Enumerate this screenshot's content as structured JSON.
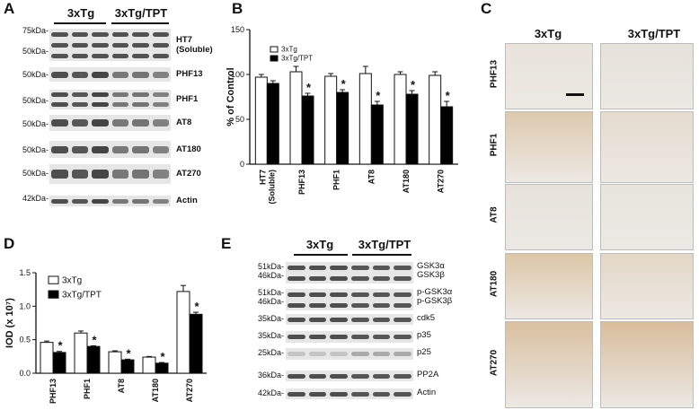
{
  "figure": {
    "panel_labels": {
      "a": "A",
      "b": "B",
      "c": "C",
      "d": "D",
      "e": "E"
    },
    "groups": {
      "control": "3xTg",
      "treated": "3xTg/TPT"
    },
    "panel_a": {
      "blots": [
        {
          "mw": [
            "75kDa-",
            "50kDa-"
          ],
          "label": "HT7\n(Soluble)"
        },
        {
          "mw": [
            "50kDa-"
          ],
          "label": "PHF13"
        },
        {
          "mw": [
            "50kDa-"
          ],
          "label": "PHF1"
        },
        {
          "mw": [
            "50kDa-"
          ],
          "label": "AT8"
        },
        {
          "mw": [
            "50kDa-"
          ],
          "label": "AT180"
        },
        {
          "mw": [
            "50kDa-"
          ],
          "label": "AT270"
        },
        {
          "mw": [
            "42kDa-"
          ],
          "label": "Actin"
        }
      ]
    },
    "panel_c": {
      "rows": [
        "PHF13",
        "PHF1",
        "AT8",
        "AT180",
        "AT270"
      ]
    },
    "panel_e": {
      "blots": [
        {
          "mw": [
            "51kDa-",
            "46kDa-"
          ],
          "labels": [
            "GSK3α",
            "GSK3β"
          ]
        },
        {
          "mw": [
            "51kDa-",
            "46kDa-"
          ],
          "labels": [
            "p-GSK3α",
            "p-GSK3β"
          ]
        },
        {
          "mw": [
            "35kDa-"
          ],
          "labels": [
            "cdk5"
          ]
        },
        {
          "mw": [
            "35kDa-"
          ],
          "labels": [
            "p35"
          ]
        },
        {
          "mw": [
            "25kDa-"
          ],
          "labels": [
            "p25"
          ]
        },
        {
          "mw": [
            "36kDa-"
          ],
          "labels": [
            "PP2A"
          ]
        },
        {
          "mw": [
            "42kDa-"
          ],
          "labels": [
            "Actin"
          ]
        }
      ]
    },
    "colors": {
      "control": "#ffffff",
      "treated": "#000000",
      "outline": "#000000"
    }
  },
  "chart_data": [
    {
      "panel": "B",
      "type": "bar",
      "categories": [
        "HT7 (Soluble)",
        "PHF13",
        "PHF1",
        "AT8",
        "AT180",
        "AT270"
      ],
      "series": [
        {
          "name": "3xTg",
          "values": [
            97,
            103,
            98,
            101,
            100,
            99
          ],
          "errors": [
            3,
            6,
            3,
            8,
            3,
            4
          ]
        },
        {
          "name": "3xTg/TPT",
          "values": [
            90,
            76,
            80,
            66,
            78,
            64
          ],
          "errors": [
            3,
            3,
            3,
            4,
            4,
            6
          ]
        }
      ],
      "significant": [
        "",
        "*",
        "*",
        "*",
        "*",
        "*"
      ],
      "ylabel": "% of Control",
      "yticks": [
        0,
        50,
        100,
        150
      ],
      "ylim": [
        0,
        150
      ],
      "legend_position": "top-left"
    },
    {
      "panel": "D",
      "type": "bar",
      "categories": [
        "PHF13",
        "PHF1",
        "AT8",
        "AT180",
        "AT270"
      ],
      "series": [
        {
          "name": "3xTg",
          "values": [
            0.46,
            0.6,
            0.32,
            0.24,
            1.22
          ],
          "errors": [
            0.02,
            0.03,
            0.015,
            0.01,
            0.09
          ]
        },
        {
          "name": "3xTg/TPT",
          "values": [
            0.31,
            0.4,
            0.2,
            0.15,
            0.88
          ],
          "errors": [
            0.015,
            0.01,
            0.01,
            0.01,
            0.03
          ]
        }
      ],
      "significant": [
        "*",
        "*",
        "*",
        "*",
        "*"
      ],
      "ylabel": "IOD (x 10⁷)",
      "yticks": [
        0.0,
        0.5,
        1.0,
        1.5
      ],
      "ytick_labels": [
        "0.0",
        "0.5",
        "1.0",
        "1.5"
      ],
      "ylim": [
        0,
        1.5
      ],
      "legend_position": "top-left"
    }
  ]
}
